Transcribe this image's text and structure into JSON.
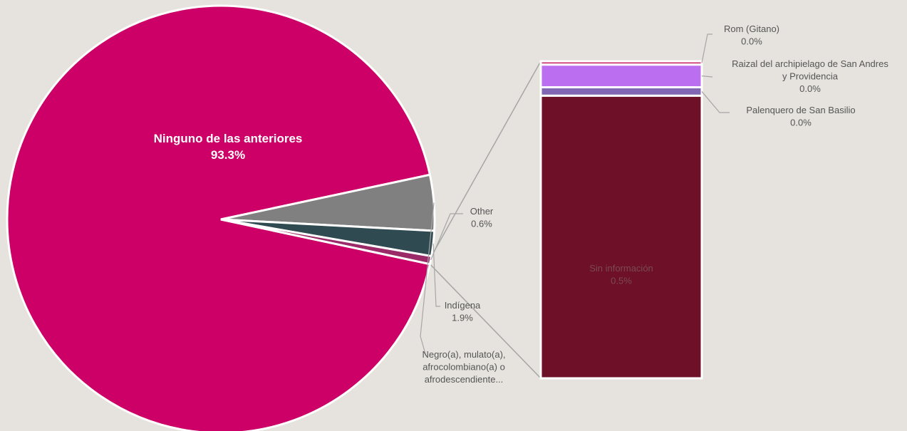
{
  "chart_data": {
    "type": "pie",
    "title": "",
    "pie": {
      "slices": [
        {
          "name": "Ninguno de las anteriores",
          "value": 93.3,
          "value_label": "93.3%",
          "color": "#cc0066"
        },
        {
          "name": "Negro(a), mulato(a), afrocolombiano(a) o afrodescendiente...",
          "value": 4.2,
          "color": "#808080"
        },
        {
          "name": "Indígena",
          "value": 1.9,
          "value_label": "1.9%",
          "color": "#2f4a50"
        },
        {
          "name": "Other",
          "value": 0.6,
          "value_label": "0.6%",
          "color": "#9b2a68"
        }
      ]
    },
    "bar_of_pie": {
      "segments": [
        {
          "name": "Rom (Gitano)",
          "value": 0.006,
          "value_label": "0.0%",
          "color": "#cc2a6a"
        },
        {
          "name": "Raizal del archipielago de San Andres y Providencia",
          "value": 0.04,
          "value_label": "0.0%",
          "color": "#bb6ef0"
        },
        {
          "name": "Palenquero de San Basilio",
          "value": 0.015,
          "value_label": "0.0%",
          "color": "#8066b3"
        },
        {
          "name": "Sin información",
          "value": 0.5,
          "value_label": "0.5%",
          "color": "#6e1028"
        }
      ]
    }
  }
}
